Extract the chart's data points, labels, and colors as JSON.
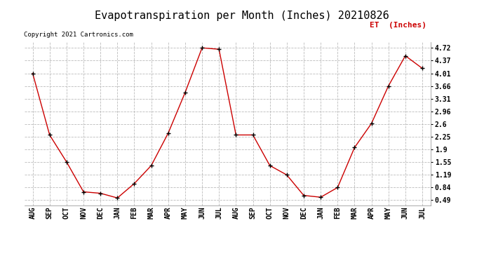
{
  "title": "Evapotranspiration per Month (Inches) 20210826",
  "legend_label": "ET  (Inches)",
  "copyright": "Copyright 2021 Cartronics.com",
  "months": [
    "AUG",
    "SEP",
    "OCT",
    "NOV",
    "DEC",
    "JAN",
    "FEB",
    "MAR",
    "APR",
    "MAY",
    "JUN",
    "JUL",
    "AUG",
    "SEP",
    "OCT",
    "NOV",
    "DEC",
    "JAN",
    "FEB",
    "MAR",
    "APR",
    "MAY",
    "JUN",
    "JUL"
  ],
  "values": [
    4.01,
    2.3,
    1.55,
    0.72,
    0.68,
    0.55,
    0.95,
    1.45,
    2.35,
    3.48,
    4.72,
    4.68,
    2.3,
    2.3,
    1.45,
    1.19,
    0.62,
    0.57,
    0.84,
    1.95,
    2.62,
    3.66,
    4.5,
    4.15
  ],
  "yticks": [
    0.49,
    0.84,
    1.19,
    1.55,
    1.9,
    2.25,
    2.6,
    2.96,
    3.31,
    3.66,
    4.01,
    4.37,
    4.72
  ],
  "ymin": 0.35,
  "ymax": 4.88,
  "line_color": "#cc0000",
  "marker_color": "#000000",
  "grid_color": "#bbbbbb",
  "bg_color": "#ffffff",
  "title_fontsize": 11,
  "axis_fontsize": 7,
  "legend_color": "#cc0000",
  "copyright_color": "#000000"
}
